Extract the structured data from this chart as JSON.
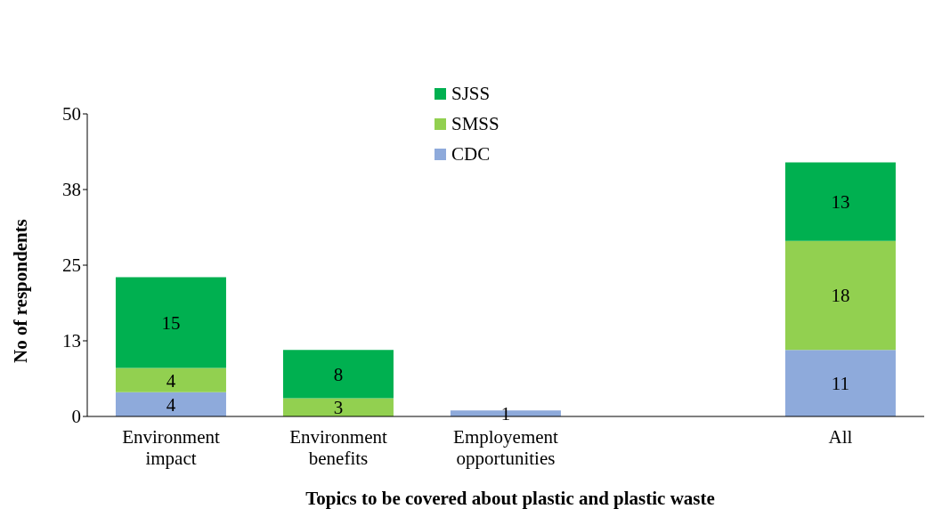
{
  "chart_data": {
    "type": "bar",
    "stacked": true,
    "xlabel": "Topics to be covered about plastic and plastic waste",
    "ylabel": "No of respondents",
    "categories": [
      "Environment impact",
      "Environment benefits",
      "Employement opportunities",
      null,
      "All"
    ],
    "series": [
      {
        "name": "CDC",
        "color": "#8eaadb",
        "values": [
          4,
          null,
          1,
          null,
          11
        ],
        "value_labels": [
          "4",
          null,
          "1",
          null,
          "11"
        ]
      },
      {
        "name": "SMSS",
        "color": "#92d050",
        "values": [
          4,
          3,
          null,
          null,
          18
        ],
        "value_labels": [
          "4",
          "3",
          null,
          null,
          "18"
        ]
      },
      {
        "name": "SJSS",
        "color": "#00b050",
        "values": [
          15,
          8,
          null,
          null,
          13
        ],
        "value_labels": [
          "15",
          "8",
          null,
          null,
          "13"
        ]
      }
    ],
    "ylim": [
      0,
      50
    ],
    "yticks": [
      0,
      {
        "value": 12.5,
        "label": "13"
      },
      25,
      {
        "value": 37.5,
        "label": "38"
      },
      50
    ],
    "legend": "top"
  }
}
